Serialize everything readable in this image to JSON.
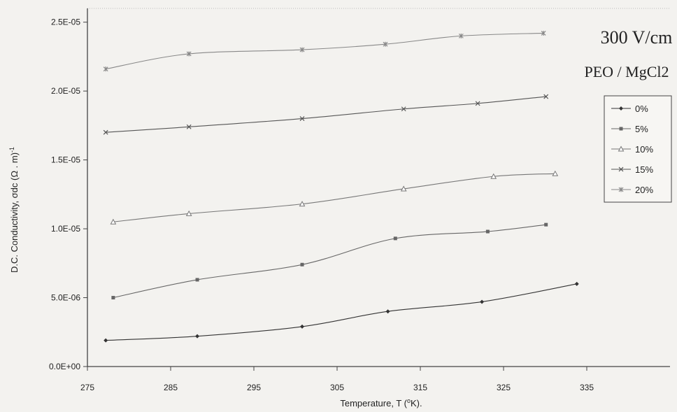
{
  "chart_data": {
    "type": "line",
    "xlabel": "Temperature, T (",
    "xlabel_sup": "o",
    "xlabel_tail": "K).",
    "ylabel": "D.C. Conductivity, σdc (Ω . m)",
    "ylabel_sup": "-1",
    "xlim": [
      275,
      345
    ],
    "ylim": [
      0,
      2.6e-05
    ],
    "x_ticks": [
      275,
      285,
      295,
      305,
      315,
      325,
      335
    ],
    "x_tick_labels": [
      "275",
      "285",
      "295",
      "305",
      "315",
      "325",
      "335"
    ],
    "y_ticks": [
      0,
      5e-06,
      1e-05,
      1.5e-05,
      2e-05,
      2.5e-05
    ],
    "y_tick_labels": [
      "0.0E+00",
      "5.0E-06",
      "1.0E-05",
      "1.5E-05",
      "2.0E-05",
      "2.5E-05"
    ],
    "grid": false,
    "legend_position": "right",
    "annotations": [
      "300 V/cm",
      "PEO / MgCl2"
    ],
    "series": [
      {
        "name": "0%",
        "marker": "diamond",
        "color": "#333333",
        "x": [
          277.2,
          288.2,
          300.8,
          311.1,
          322.4,
          333.8
        ],
        "y": [
          1.9e-06,
          2.2e-06,
          2.9e-06,
          4e-06,
          4.7e-06,
          6e-06
        ]
      },
      {
        "name": "5%",
        "marker": "square",
        "color": "#666666",
        "x": [
          278.1,
          288.2,
          300.8,
          312.0,
          323.1,
          330.1
        ],
        "y": [
          5e-06,
          6.3e-06,
          7.4e-06,
          9.3e-06,
          9.8e-06,
          1.03e-05
        ]
      },
      {
        "name": "10%",
        "marker": "triangle",
        "color": "#777777",
        "x": [
          278.1,
          287.2,
          300.8,
          313.0,
          323.8,
          331.2
        ],
        "y": [
          1.05e-05,
          1.11e-05,
          1.18e-05,
          1.29e-05,
          1.38e-05,
          1.4e-05
        ]
      },
      {
        "name": "15%",
        "marker": "x",
        "color": "#555555",
        "x": [
          277.2,
          287.2,
          300.8,
          313.0,
          321.9,
          330.1
        ],
        "y": [
          1.7e-05,
          1.74e-05,
          1.8e-05,
          1.87e-05,
          1.91e-05,
          1.96e-05
        ]
      },
      {
        "name": "20%",
        "marker": "asterisk",
        "color": "#888888",
        "x": [
          277.2,
          287.2,
          300.8,
          310.8,
          319.9,
          329.8
        ],
        "y": [
          2.16e-05,
          2.27e-05,
          2.3e-05,
          2.34e-05,
          2.4e-05,
          2.42e-05
        ]
      }
    ]
  }
}
